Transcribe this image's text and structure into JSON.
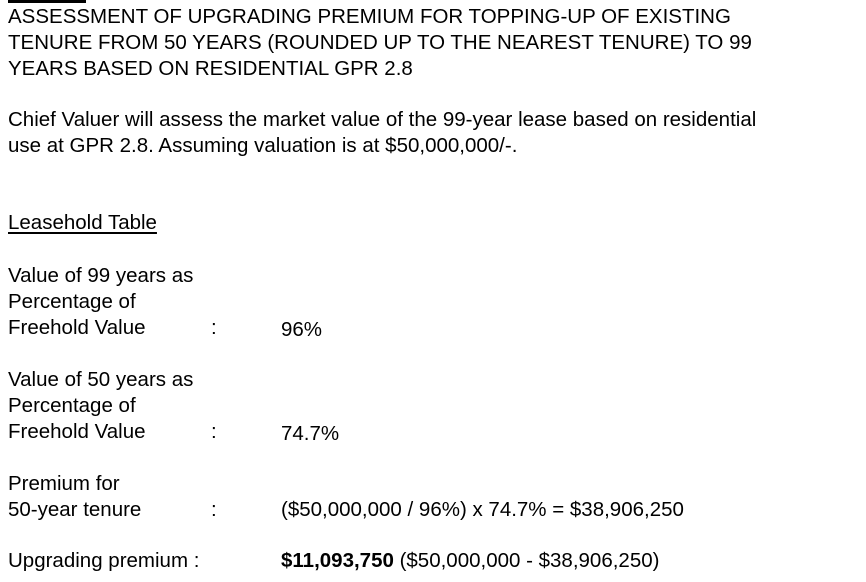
{
  "title_lines": [
    "ASSESSMENT OF UPGRADING PREMIUM FOR TOPPING-UP OF EXISTING",
    "TENURE FROM 50 YEARS (ROUNDED UP TO THE NEAREST TENURE) TO 99",
    "YEARS BASED ON RESIDENTIAL GPR 2.8"
  ],
  "intro_lines": [
    "Chief Valuer will assess the market value of the 99-year lease based on residential",
    "use at GPR 2.8. Assuming valuation is at $50,000,000/-."
  ],
  "section_heading": "Leasehold Table",
  "rows": [
    {
      "label_lines": [
        "Value of 99 years as",
        "Percentage of",
        "Freehold Value"
      ],
      "colon": ":",
      "value": "96%"
    },
    {
      "label_lines": [
        "Value of 50 years as",
        "Percentage of",
        "Freehold Value"
      ],
      "colon": ":",
      "value": "74.7%"
    },
    {
      "label_lines": [
        "Premium for",
        "50-year tenure"
      ],
      "colon": ":",
      "value": "($50,000,000 / 96%) x 74.7% = $38,906,250"
    },
    {
      "label_lines": [
        "Upgrading premium :"
      ],
      "value_bold": "$11,093,750",
      "value_rest": " ($50,000,000 - $38,906,250)"
    }
  ]
}
